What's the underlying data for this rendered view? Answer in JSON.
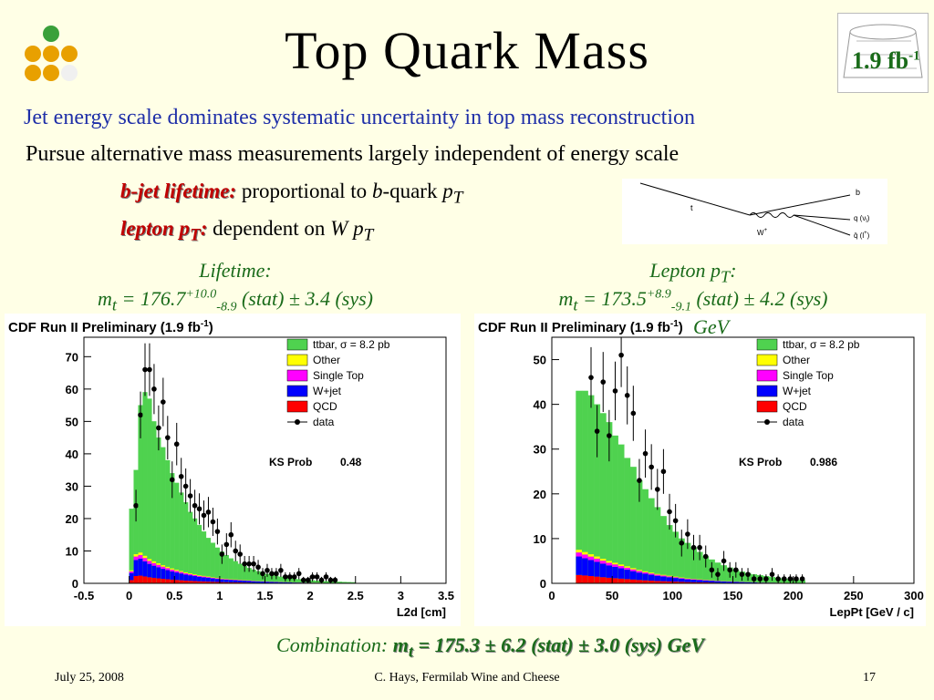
{
  "slide": {
    "title": "Top Quark Mass",
    "lumi": {
      "base": "1.9 fb",
      "sup": "-1"
    },
    "bullets": {
      "b1": "Jet energy scale dominates systematic uncertainty in top mass reconstruction",
      "b2": "Pursue alternative mass measurements largely independent of energy scale",
      "sub1": {
        "label": "b-jet lifetime:",
        "text": " proportional to ",
        "b": "b",
        "rest": "-quark ",
        "p": "p",
        "T": "T"
      },
      "sub2": {
        "label": "lepton p",
        "labelsub": "T",
        "labelend": ":",
        "text": " dependent on ",
        "w": "W p",
        "T": "T"
      }
    },
    "feynman": {
      "t": "t",
      "b": "b",
      "w": "W",
      "wsup": "+",
      "q": "q (ν",
      "qsub": "l",
      "qend": ")",
      "qbar": "q̄ (l",
      "qbarsup": "+",
      "qbarend": ")"
    },
    "captions": {
      "left_title": "Lifetime:",
      "left_m": "m",
      "left_msub": "t",
      "left_val": " = 176.7",
      "left_sup": "+10.0",
      "left_sub": "-8.9",
      "left_rest": " (stat) ± 3.4 (sys)",
      "right_title": "Lepton p",
      "right_title_sub": "T",
      "right_title_end": ":",
      "right_m": "m",
      "right_msub": "t",
      "right_val": " = 173.5",
      "right_sup": "+8.9",
      "right_sub": "-9.1",
      "right_rest": " (stat) ± 4.2 (sys)",
      "right_gev": "GeV"
    },
    "combination": {
      "label": "Combination: ",
      "m": "m",
      "msub": "t",
      "rest": " = 175.3 ± 6.2 (stat) ± 3.0 (sys) GeV"
    },
    "footer": {
      "date": "July 25, 2008",
      "author": "C. Hays, Fermilab Wine and Cheese",
      "page": "17"
    }
  },
  "colors": {
    "ttbar": "#4fd24f",
    "other": "#ffff00",
    "single_top": "#ff00ff",
    "wjet": "#0000ff",
    "qcd": "#ff0000"
  },
  "chart_data": [
    {
      "type": "bar",
      "header": "CDF Run II Preliminary (1.9 fb",
      "header_sup": "-1",
      "header_end": ")",
      "xlabel": "L2d [cm]",
      "xlim": [
        -0.5,
        3.5
      ],
      "ylim": [
        0,
        76
      ],
      "xticks": [
        -0.5,
        0,
        0.5,
        1,
        1.5,
        2,
        2.5,
        3,
        3.5
      ],
      "xtick_labels": [
        "-0.5",
        "0",
        "0.5",
        "1",
        "1.5",
        "2",
        "2.5",
        "3",
        "3.5"
      ],
      "yticks": [
        0,
        10,
        20,
        30,
        40,
        50,
        60,
        70
      ],
      "ytick_labels": [
        "0",
        "10",
        "20",
        "30",
        "40",
        "50",
        "60",
        "70"
      ],
      "ks_label": "KS Prob",
      "ks_value": "0.48",
      "legend": [
        "ttbar, σ = 8.2 pb",
        "Other",
        "Single Top",
        "W+jet",
        "QCD",
        "data"
      ],
      "bin_start": 0.0,
      "bin_width": 0.05,
      "stack_total": [
        23,
        35,
        55,
        59,
        57,
        50,
        45,
        42,
        38,
        34,
        31,
        28,
        25,
        22,
        20,
        18,
        16,
        14,
        12.5,
        11,
        9.8,
        8.7,
        7.7,
        6.8,
        6,
        5.3,
        4.7,
        4.2,
        3.7,
        3.3,
        2.9,
        2.6,
        2.3,
        2,
        1.8,
        1.6,
        1.4,
        1.25,
        1.1,
        1,
        0.9,
        0.8,
        0.7,
        0.6,
        0.55,
        0.5,
        0.45,
        0.4,
        0.35,
        0.3
      ],
      "background_total": [
        4,
        9,
        9.5,
        8.5,
        7.5,
        6.8,
        6.2,
        5.6,
        5.1,
        4.6,
        4.2,
        3.8,
        3.4,
        3.1,
        2.8,
        2.5,
        2.3,
        2.1,
        1.9,
        1.7,
        1.5,
        1.4,
        1.3,
        1.2,
        1.1,
        1,
        0.9,
        0.8,
        0.7,
        0.65,
        0.6,
        0.55,
        0.5,
        0.45,
        0.4,
        0.35,
        0.3,
        0.28,
        0.25,
        0.22,
        0.2,
        0.18,
        0.16,
        0.14,
        0.12,
        0.1,
        0.08,
        0.06,
        0.04,
        0.02
      ],
      "data": [
        0,
        24,
        52,
        66,
        66,
        60,
        48,
        56,
        45,
        32,
        43,
        33,
        30,
        27,
        24,
        23,
        21,
        22,
        19,
        16,
        9,
        12,
        15,
        10,
        9,
        6,
        6,
        6,
        5,
        3,
        4,
        3,
        3,
        4,
        2,
        2,
        2,
        3,
        1,
        1,
        2,
        2,
        1,
        2,
        1,
        1,
        0,
        0,
        0,
        0
      ]
    },
    {
      "type": "bar",
      "header": "CDF Run II Preliminary (1.9 fb",
      "header_sup": "-1",
      "header_end": ")",
      "xlabel": "LepPt [GeV / c]",
      "xlim": [
        0,
        300
      ],
      "ylim": [
        0,
        55
      ],
      "xticks": [
        0,
        50,
        100,
        150,
        200,
        250,
        300
      ],
      "xtick_labels": [
        "0",
        "50",
        "100",
        "150",
        "200",
        "250",
        "300"
      ],
      "yticks": [
        0,
        10,
        20,
        30,
        40,
        50
      ],
      "ytick_labels": [
        "0",
        "10",
        "20",
        "30",
        "40",
        "50"
      ],
      "ks_label": "KS Prob",
      "ks_value": "0.986",
      "legend": [
        "ttbar, σ = 8.2 pb",
        "Other",
        "Single Top",
        "W+jet",
        "QCD",
        "data"
      ],
      "bin_start": 20,
      "bin_width": 5,
      "stack_total": [
        43,
        43,
        42,
        40,
        38,
        36,
        33,
        31,
        28,
        26,
        23,
        21,
        19,
        17,
        15,
        13,
        11.5,
        10,
        9,
        8,
        7,
        6,
        5.3,
        4.6,
        4,
        3.5,
        3,
        2.6,
        2.3,
        2,
        1.8,
        1.6,
        1.4,
        1.2,
        1,
        0.9,
        0.8,
        0.7
      ],
      "background_total": [
        7.5,
        7,
        6.5,
        6,
        5.5,
        5,
        4.6,
        4.2,
        3.8,
        3.4,
        3,
        2.7,
        2.4,
        2.1,
        1.9,
        1.7,
        1.5,
        1.3,
        1.1,
        1,
        0.9,
        0.8,
        0.7,
        0.6,
        0.5,
        0.45,
        0.4,
        0.35,
        0.3,
        0.25,
        0.2,
        0.18,
        0.16,
        0.14,
        0.12,
        0.1,
        0.08,
        0.06
      ],
      "data": [
        0,
        0,
        46,
        34,
        45,
        33,
        43,
        51,
        42,
        38,
        23,
        29,
        26,
        21,
        25,
        16,
        14,
        9,
        11,
        8,
        8,
        6,
        3,
        2,
        5,
        3,
        3,
        2,
        2,
        1,
        1,
        1,
        2,
        1,
        1,
        1,
        1,
        1
      ]
    }
  ]
}
